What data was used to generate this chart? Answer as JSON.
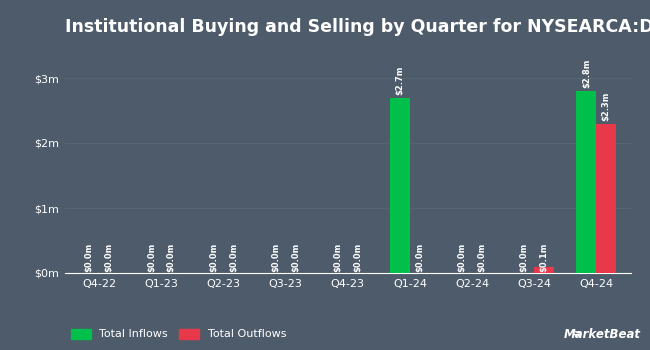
{
  "title": "Institutional Buying and Selling by Quarter for NYSEARCA:DRUP",
  "quarters": [
    "Q4-22",
    "Q1-23",
    "Q2-23",
    "Q3-23",
    "Q4-23",
    "Q1-24",
    "Q2-24",
    "Q3-24",
    "Q4-24"
  ],
  "inflows": [
    0.0,
    0.0,
    0.0,
    0.0,
    0.0,
    2700000,
    0.0,
    0.0,
    2800000
  ],
  "outflows": [
    0.0,
    0.0,
    0.0,
    0.0,
    0.0,
    0.0,
    0.0,
    100000,
    2300000
  ],
  "inflow_labels": [
    "$0.0m",
    "$0.0m",
    "$0.0m",
    "$0.0m",
    "$0.0m",
    "$2.7m",
    "$0.0m",
    "$0.0m",
    "$2.8m"
  ],
  "outflow_labels": [
    "$0.0m",
    "$0.0m",
    "$0.0m",
    "$0.0m",
    "$0.0m",
    "$0.0m",
    "$0.0m",
    "$0.1m",
    "$2.3m"
  ],
  "inflow_color": "#00c04b",
  "outflow_color": "#e8394a",
  "background_color": "#4d5b6b",
  "text_color": "#ffffff",
  "grid_color": "#5d6b7a",
  "bar_width": 0.32,
  "ylim": [
    0,
    3500000
  ],
  "yticks": [
    0,
    1000000,
    2000000,
    3000000
  ],
  "ytick_labels": [
    "$0m",
    "$1m",
    "$2m",
    "$3m"
  ],
  "legend_inflow": "Total Inflows",
  "legend_outflow": "Total Outflows",
  "title_fontsize": 12.5,
  "label_fontsize": 6.0,
  "tick_fontsize": 8.0,
  "legend_fontsize": 8.0
}
